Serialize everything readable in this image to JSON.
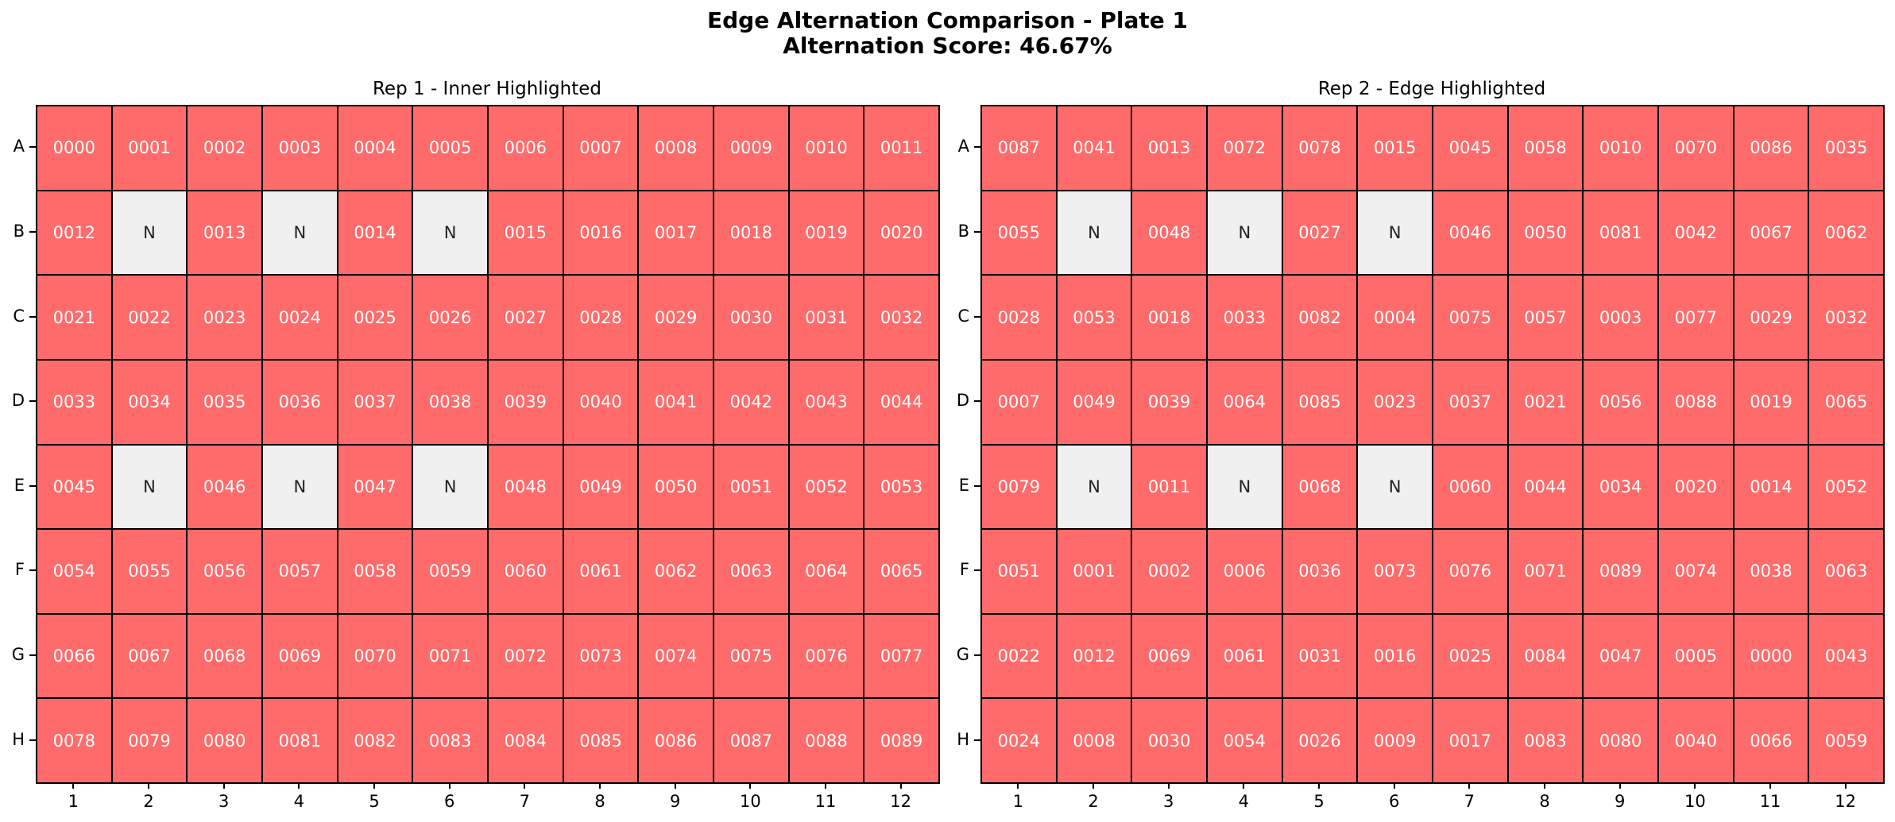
{
  "figure": {
    "title_line1": "Edge Alternation Comparison - Plate 1",
    "title_line2": "Alternation Score: 46.67%"
  },
  "colors": {
    "filled": "#ff6b6b",
    "empty": "#f0f0f0",
    "filled_text": "#ffffff",
    "empty_text": "#222222",
    "border": "#000000"
  },
  "chart_data": [
    {
      "type": "heatmap",
      "title": "Rep 1 - Inner Highlighted",
      "row_labels": [
        "A",
        "B",
        "C",
        "D",
        "E",
        "F",
        "G",
        "H"
      ],
      "col_labels": [
        "1",
        "2",
        "3",
        "4",
        "5",
        "6",
        "7",
        "8",
        "9",
        "10",
        "11",
        "12"
      ],
      "cells": [
        [
          "0000",
          "0001",
          "0002",
          "0003",
          "0004",
          "0005",
          "0006",
          "0007",
          "0008",
          "0009",
          "0010",
          "0011"
        ],
        [
          "0012",
          "N",
          "0013",
          "N",
          "0014",
          "N",
          "0015",
          "0016",
          "0017",
          "0018",
          "0019",
          "0020"
        ],
        [
          "0021",
          "0022",
          "0023",
          "0024",
          "0025",
          "0026",
          "0027",
          "0028",
          "0029",
          "0030",
          "0031",
          "0032"
        ],
        [
          "0033",
          "0034",
          "0035",
          "0036",
          "0037",
          "0038",
          "0039",
          "0040",
          "0041",
          "0042",
          "0043",
          "0044"
        ],
        [
          "0045",
          "N",
          "0046",
          "N",
          "0047",
          "N",
          "0048",
          "0049",
          "0050",
          "0051",
          "0052",
          "0053"
        ],
        [
          "0054",
          "0055",
          "0056",
          "0057",
          "0058",
          "0059",
          "0060",
          "0061",
          "0062",
          "0063",
          "0064",
          "0065"
        ],
        [
          "0066",
          "0067",
          "0068",
          "0069",
          "0070",
          "0071",
          "0072",
          "0073",
          "0074",
          "0075",
          "0076",
          "0077"
        ],
        [
          "0078",
          "0079",
          "0080",
          "0081",
          "0082",
          "0083",
          "0084",
          "0085",
          "0086",
          "0087",
          "0088",
          "0089"
        ]
      ]
    },
    {
      "type": "heatmap",
      "title": "Rep 2 - Edge Highlighted",
      "row_labels": [
        "A",
        "B",
        "C",
        "D",
        "E",
        "F",
        "G",
        "H"
      ],
      "col_labels": [
        "1",
        "2",
        "3",
        "4",
        "5",
        "6",
        "7",
        "8",
        "9",
        "10",
        "11",
        "12"
      ],
      "cells": [
        [
          "0087",
          "0041",
          "0013",
          "0072",
          "0078",
          "0015",
          "0045",
          "0058",
          "0010",
          "0070",
          "0086",
          "0035"
        ],
        [
          "0055",
          "N",
          "0048",
          "N",
          "0027",
          "N",
          "0046",
          "0050",
          "0081",
          "0042",
          "0067",
          "0062"
        ],
        [
          "0028",
          "0053",
          "0018",
          "0033",
          "0082",
          "0004",
          "0075",
          "0057",
          "0003",
          "0077",
          "0029",
          "0032"
        ],
        [
          "0007",
          "0049",
          "0039",
          "0064",
          "0085",
          "0023",
          "0037",
          "0021",
          "0056",
          "0088",
          "0019",
          "0065"
        ],
        [
          "0079",
          "N",
          "0011",
          "N",
          "0068",
          "N",
          "0060",
          "0044",
          "0034",
          "0020",
          "0014",
          "0052"
        ],
        [
          "0051",
          "0001",
          "0002",
          "0006",
          "0036",
          "0073",
          "0076",
          "0071",
          "0089",
          "0074",
          "0038",
          "0063"
        ],
        [
          "0022",
          "0012",
          "0069",
          "0061",
          "0031",
          "0016",
          "0025",
          "0084",
          "0047",
          "0005",
          "0000",
          "0043"
        ],
        [
          "0024",
          "0008",
          "0030",
          "0054",
          "0026",
          "0009",
          "0017",
          "0083",
          "0080",
          "0040",
          "0066",
          "0059"
        ]
      ]
    }
  ]
}
